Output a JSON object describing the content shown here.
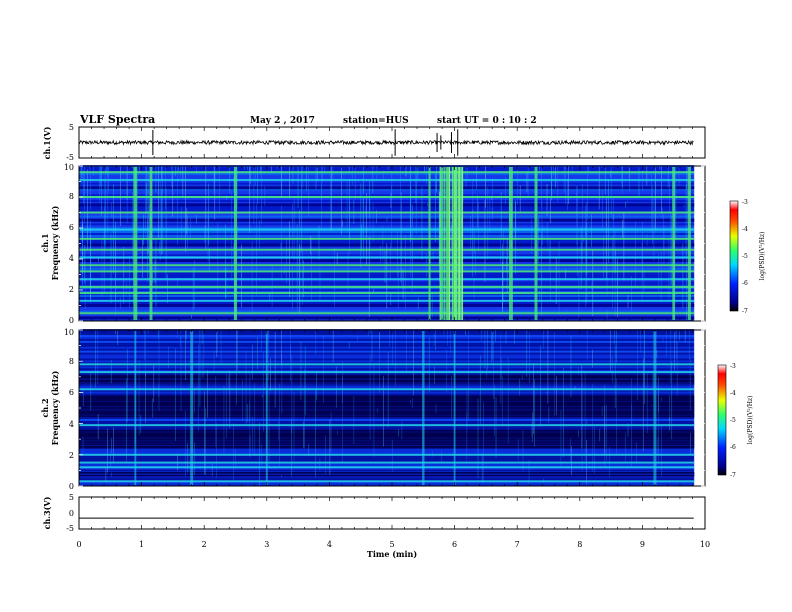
{
  "header": {
    "title": "VLF Spectra",
    "date": "May 2 , 2017",
    "station": "station=HUS",
    "start": "start UT = 0 : 10 : 2"
  },
  "colors": {
    "background_dark": "#00004a",
    "spectrum_blue": "#0a2cd8",
    "spectrum_cyan": "#26d9ee",
    "spectrum_green": "#4cf07a",
    "waveform": "#000000"
  },
  "chart_data": [
    {
      "type": "line",
      "name": "ch1-waveform",
      "ylabel": "ch.1(V)",
      "ylim": [
        -5,
        5
      ],
      "yticks": [
        "5",
        "-5"
      ],
      "xlim": [
        0,
        10
      ],
      "baseline": 0,
      "trace_end_min": 9.82,
      "spikes_min": [
        1.18,
        5.05,
        5.72,
        5.78,
        5.95,
        6.05
      ]
    },
    {
      "type": "heatmap",
      "name": "ch1-spectrogram",
      "ylabel_line1": "ch.1",
      "ylabel_line2": "Frequency (kHz)",
      "ylim": [
        0,
        10
      ],
      "yticks": [
        "0",
        "2",
        "4",
        "6",
        "8",
        "10"
      ],
      "xlim": [
        0,
        10
      ],
      "data_end_min": 9.82,
      "bright_lines_khz": [
        0.5,
        1.3,
        1.8,
        2.2,
        2.7,
        3.2,
        3.6,
        4.1,
        4.6,
        5.3,
        5.9,
        7.0,
        8.0,
        9.1,
        9.6
      ],
      "dark_lines_khz": [
        0.2,
        1.0,
        3.9,
        4.9,
        6.5,
        7.5,
        8.6
      ],
      "bursts_min": [
        0.9,
        1.15,
        2.5,
        5.6,
        5.8,
        5.9,
        6.0,
        6.1,
        6.9,
        7.3,
        9.5,
        9.75
      ],
      "colorbar": {
        "label": "log(PSD)(V²/Hz)",
        "ticks": [
          "-3",
          "-4",
          "-5",
          "-6",
          "-7"
        ],
        "range": [
          -7,
          -3
        ]
      }
    },
    {
      "type": "heatmap",
      "name": "ch2-spectrogram",
      "ylabel_line1": "ch.2",
      "ylabel_line2": "Frequency (kHz)",
      "ylim": [
        0,
        10
      ],
      "yticks": [
        "0",
        "2",
        "4",
        "6",
        "8",
        "10"
      ],
      "xlim": [
        0,
        10
      ],
      "data_end_min": 9.82,
      "bright_lines_khz": [
        0.3,
        1.2,
        1.5,
        2.0,
        3.9,
        6.2,
        7.3,
        7.8
      ],
      "dark_bands_khz": [
        [
          2.4,
          3.6
        ],
        [
          4.4,
          5.8
        ],
        [
          6.5,
          7.1
        ],
        [
          0.6,
          0.9
        ]
      ],
      "bursts_min": [
        0.9,
        1.8,
        3.0,
        5.5,
        6.0,
        9.2
      ],
      "colorbar": {
        "label": "log(PSD)(V²/Hz)",
        "ticks": [
          "-3",
          "-4",
          "-5",
          "-6",
          "-7"
        ],
        "range": [
          -7,
          -3
        ]
      }
    },
    {
      "type": "line",
      "name": "ch3-waveform",
      "ylabel": "ch.3(V)",
      "ylim": [
        -5,
        5
      ],
      "yticks": [
        "5",
        "0",
        "-5"
      ],
      "xlim": [
        0,
        10
      ],
      "flat_value": -1.6,
      "trace_end_min": 9.82
    }
  ],
  "xaxis": {
    "label": "Time (min)",
    "ticks": [
      "0",
      "1",
      "2",
      "3",
      "4",
      "5",
      "6",
      "7",
      "8",
      "9",
      "10"
    ]
  }
}
